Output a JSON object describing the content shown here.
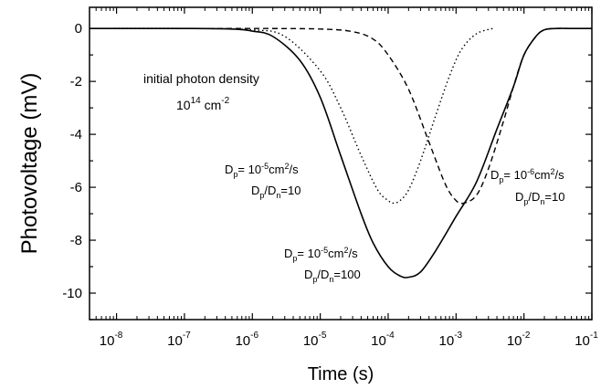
{
  "chart_data": {
    "type": "line",
    "title": "",
    "xlabel": "Time (s)",
    "ylabel": "Photovoltage (mV)",
    "x_scale": "log",
    "xlim": [
      4e-09,
      0.1
    ],
    "ylim": [
      -11,
      0.8
    ],
    "x_ticks": [
      1e-08,
      1e-07,
      1e-06,
      1e-05,
      0.0001,
      0.001,
      0.01,
      0.1
    ],
    "x_tick_labels": [
      {
        "base": "10",
        "exp": "-8"
      },
      {
        "base": "10",
        "exp": "-7"
      },
      {
        "base": "10",
        "exp": "-6"
      },
      {
        "base": "10",
        "exp": "-5"
      },
      {
        "base": "10",
        "exp": "-4"
      },
      {
        "base": "10",
        "exp": "-3"
      },
      {
        "base": "10",
        "exp": "-2"
      },
      {
        "base": "10",
        "exp": "-1"
      }
    ],
    "y_ticks": [
      0,
      -2,
      -4,
      -6,
      -8,
      -10
    ],
    "y_tick_labels": [
      "0",
      "-2",
      "-4",
      "-6",
      "-8",
      "-10"
    ],
    "grid": false,
    "legend": "none",
    "series": [
      {
        "style": "solid",
        "x": [
          4e-09,
          1e-08,
          1e-07,
          5e-07,
          1e-06,
          2e-06,
          5e-06,
          1e-05,
          2e-05,
          4e-05,
          6e-05,
          0.0001,
          0.00015,
          0.0002,
          0.0003,
          0.0005,
          0.001,
          0.002,
          0.004,
          0.007,
          0.01,
          0.015,
          0.02,
          0.03,
          0.05,
          0.1
        ],
        "y": [
          0,
          0,
          0,
          -0.02,
          -0.1,
          -0.3,
          -1.2,
          -2.6,
          -4.8,
          -7.0,
          -8.1,
          -9.0,
          -9.35,
          -9.4,
          -9.2,
          -8.4,
          -7.1,
          -5.8,
          -3.8,
          -2.2,
          -1.0,
          -0.3,
          -0.05,
          0,
          0,
          0
        ]
      },
      {
        "style": "dotted",
        "x": [
          4e-09,
          1e-07,
          1e-06,
          3e-06,
          1e-05,
          2e-05,
          4e-05,
          7e-05,
          0.0001,
          0.00012,
          0.00015,
          0.0002,
          0.0003,
          0.0005,
          0.0008,
          0.0012,
          0.002,
          0.0035
        ],
        "y": [
          0,
          0,
          -0.05,
          -0.3,
          -1.6,
          -3.0,
          -4.8,
          -6.1,
          -6.5,
          -6.6,
          -6.5,
          -6.1,
          -5.0,
          -3.3,
          -1.8,
          -0.8,
          -0.2,
          0
        ]
      },
      {
        "style": "dashed",
        "x": [
          4e-09,
          1e-07,
          1e-06,
          1e-05,
          3e-05,
          6e-05,
          0.0001,
          0.0002,
          0.0004,
          0.0007,
          0.001,
          0.0013,
          0.002,
          0.003,
          0.005,
          0.007,
          0.01,
          0.015,
          0.02,
          0.03,
          0.05,
          0.1
        ],
        "y": [
          0,
          0,
          0,
          -0.02,
          -0.12,
          -0.4,
          -1.0,
          -2.3,
          -4.3,
          -5.9,
          -6.5,
          -6.6,
          -6.3,
          -5.3,
          -3.5,
          -2.2,
          -1.0,
          -0.3,
          -0.05,
          0,
          0,
          0
        ]
      }
    ],
    "annotations": {
      "photon_density_line1": "initial photon density",
      "photon_density_line2_base": "10",
      "photon_density_line2_exp": "14",
      "photon_density_line2_unit": " cm",
      "photon_density_line2_unit_exp": "-2",
      "dotted_label": {
        "d": "D",
        "p": "p",
        "eq": "= 10",
        "exp": "-5",
        "unit": "cm",
        "unit_exp": "2",
        "unit_tail": "/s",
        "ratio_d1": "D",
        "ratio_s1": "p",
        "ratio_slash": "/D",
        "ratio_s2": "n",
        "ratio_val": "=10"
      },
      "solid_label": {
        "d": "D",
        "p": "p",
        "eq": "= 10",
        "exp": "-5",
        "unit": "cm",
        "unit_exp": "2",
        "unit_tail": "/s",
        "ratio_d1": "D",
        "ratio_s1": "p",
        "ratio_slash": "/D",
        "ratio_s2": "n",
        "ratio_val": "=100"
      },
      "dashed_label": {
        "d": "D",
        "p": "p",
        "eq": "= 10",
        "exp": "-6",
        "unit": "cm",
        "unit_exp": "2",
        "unit_tail": "/s",
        "ratio_d1": "D",
        "ratio_s1": "p",
        "ratio_slash": "/D",
        "ratio_s2": "n",
        "ratio_val": "=10"
      }
    }
  }
}
